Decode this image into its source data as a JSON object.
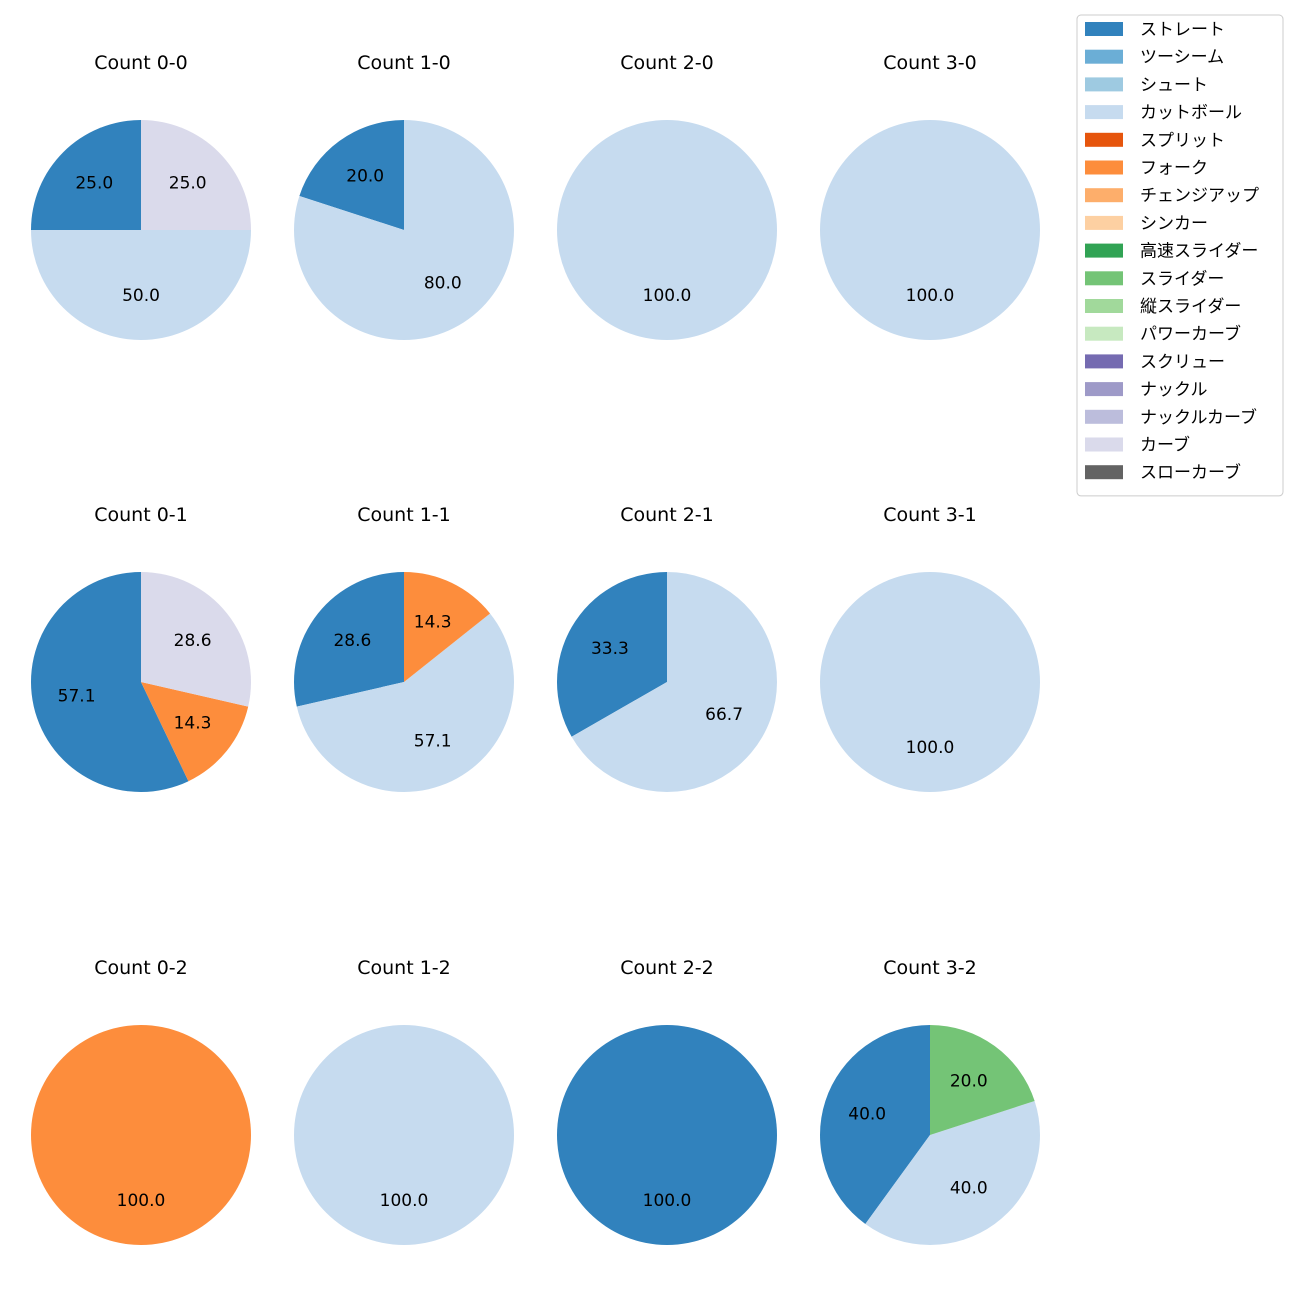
{
  "chart_data": {
    "type": "pie",
    "legend_placement": "top-right",
    "legend": [
      {
        "name": "ストレート",
        "color": "#3182bd"
      },
      {
        "name": "ツーシーム",
        "color": "#6baed6"
      },
      {
        "name": "シュート",
        "color": "#9ecae1"
      },
      {
        "name": "カットボール",
        "color": "#c6dbef"
      },
      {
        "name": "スプリット",
        "color": "#e6550d"
      },
      {
        "name": "フォーク",
        "color": "#fd8d3c"
      },
      {
        "name": "チェンジアップ",
        "color": "#fdae6b"
      },
      {
        "name": "シンカー",
        "color": "#fdd0a2"
      },
      {
        "name": "高速スライダー",
        "color": "#31a354"
      },
      {
        "name": "スライダー",
        "color": "#74c476"
      },
      {
        "name": "縦スライダー",
        "color": "#a1d99b"
      },
      {
        "name": "パワーカーブ",
        "color": "#c7e9c0"
      },
      {
        "name": "スクリュー",
        "color": "#756bb1"
      },
      {
        "name": "ナックル",
        "color": "#9e9ac8"
      },
      {
        "name": "ナックルカーブ",
        "color": "#bcbddc"
      },
      {
        "name": "カーブ",
        "color": "#dadaeb"
      },
      {
        "name": "スローカーブ",
        "color": "#636363"
      }
    ],
    "pies": [
      {
        "title": "Count 0-0",
        "slices": [
          {
            "pitch": "ストレート",
            "value": 25.0,
            "label": "25.0"
          },
          {
            "pitch": "カットボール",
            "value": 50.0,
            "label": "50.0"
          },
          {
            "pitch": "カーブ",
            "value": 25.0,
            "label": "25.0"
          }
        ]
      },
      {
        "title": "Count 1-0",
        "slices": [
          {
            "pitch": "ストレート",
            "value": 20.0,
            "label": "20.0"
          },
          {
            "pitch": "カットボール",
            "value": 80.0,
            "label": "80.0"
          }
        ]
      },
      {
        "title": "Count 2-0",
        "slices": [
          {
            "pitch": "カットボール",
            "value": 100.0,
            "label": "100.0"
          }
        ]
      },
      {
        "title": "Count 3-0",
        "slices": [
          {
            "pitch": "カットボール",
            "value": 100.0,
            "label": "100.0"
          }
        ]
      },
      {
        "title": "Count 0-1",
        "slices": [
          {
            "pitch": "ストレート",
            "value": 57.1,
            "label": "57.1"
          },
          {
            "pitch": "フォーク",
            "value": 14.3,
            "label": "14.3"
          },
          {
            "pitch": "カーブ",
            "value": 28.6,
            "label": "28.6"
          }
        ]
      },
      {
        "title": "Count 1-1",
        "slices": [
          {
            "pitch": "ストレート",
            "value": 28.6,
            "label": "28.6"
          },
          {
            "pitch": "カットボール",
            "value": 57.1,
            "label": "57.1"
          },
          {
            "pitch": "フォーク",
            "value": 14.3,
            "label": "14.3"
          }
        ]
      },
      {
        "title": "Count 2-1",
        "slices": [
          {
            "pitch": "ストレート",
            "value": 33.3,
            "label": "33.3"
          },
          {
            "pitch": "カットボール",
            "value": 66.7,
            "label": "66.7"
          }
        ]
      },
      {
        "title": "Count 3-1",
        "slices": [
          {
            "pitch": "カットボール",
            "value": 100.0,
            "label": "100.0"
          }
        ]
      },
      {
        "title": "Count 0-2",
        "slices": [
          {
            "pitch": "フォーク",
            "value": 100.0,
            "label": "100.0"
          }
        ]
      },
      {
        "title": "Count 1-2",
        "slices": [
          {
            "pitch": "カットボール",
            "value": 100.0,
            "label": "100.0"
          }
        ]
      },
      {
        "title": "Count 2-2",
        "slices": [
          {
            "pitch": "ストレート",
            "value": 100.0,
            "label": "100.0"
          }
        ]
      },
      {
        "title": "Count 3-2",
        "slices": [
          {
            "pitch": "ストレート",
            "value": 40.0,
            "label": "40.0"
          },
          {
            "pitch": "カットボール",
            "value": 40.0,
            "label": "40.0"
          },
          {
            "pitch": "スライダー",
            "value": 20.0,
            "label": "20.0"
          }
        ]
      }
    ]
  }
}
